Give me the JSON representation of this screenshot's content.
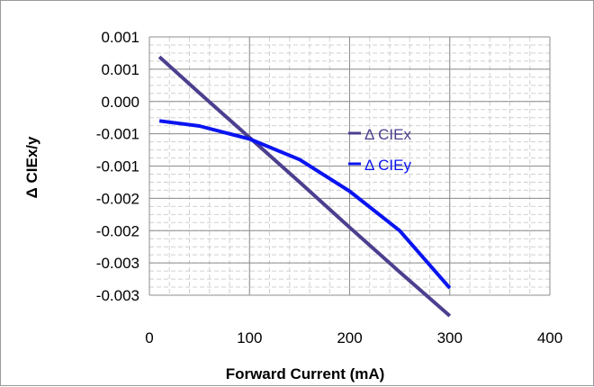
{
  "chart_data": {
    "type": "line",
    "title": "",
    "xlabel": "Forward Current (mA)",
    "ylabel": "Δ CIEx/y",
    "xlim": [
      0,
      400
    ],
    "ylim": [
      -0.003,
      0.001
    ],
    "x_ticks": [
      "0",
      "100",
      "200",
      "300",
      "400"
    ],
    "y_ticks": [
      "0.001",
      "0.001",
      "0.000",
      "-0.001",
      "-0.001",
      "-0.002",
      "-0.002",
      "-0.003",
      "-0.003"
    ],
    "grid": true,
    "legend_position": "inside-center-right",
    "series": [
      {
        "name": "Δ CIEx",
        "color": "#4b3f8f",
        "x": [
          10,
          50,
          100,
          150,
          200,
          250,
          300
        ],
        "y": [
          0.00069,
          0.00013,
          -0.00056,
          -0.00125,
          -0.00195,
          -0.00264,
          -0.00332
        ]
      },
      {
        "name": "Δ CIEy",
        "color": "#0a14f0",
        "x": [
          10,
          50,
          100,
          150,
          200,
          250,
          300
        ],
        "y": [
          -0.0003,
          -0.00038,
          -0.00058,
          -0.0009,
          -0.00139,
          -0.002,
          -0.00289
        ]
      }
    ]
  }
}
